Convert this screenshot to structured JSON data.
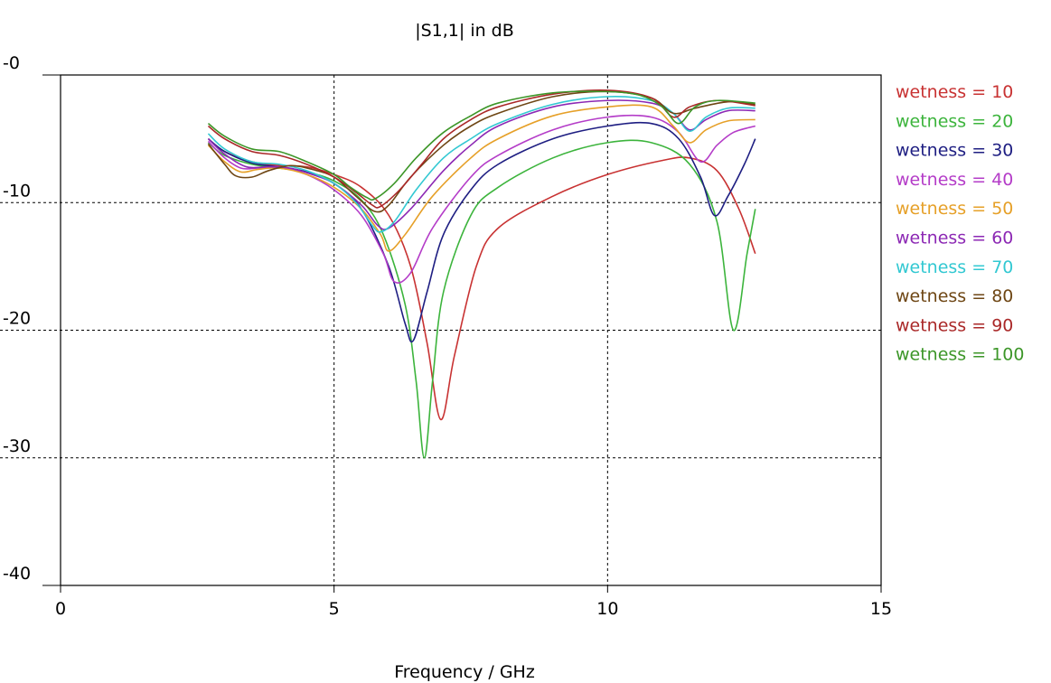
{
  "chart_data": {
    "type": "line",
    "title": "|S1,1| in dB",
    "xlabel": "Frequency / GHz",
    "ylabel": "",
    "xlim": [
      0,
      15
    ],
    "ylim": [
      -40,
      0
    ],
    "x_ticks": [
      "0",
      "5",
      "10",
      "15"
    ],
    "y_ticks": [
      "-0",
      "-10",
      "-20",
      "-30",
      "-40"
    ],
    "grid": "dashed at major ticks",
    "legend_position": "right",
    "series": [
      {
        "name": "wetness = 10",
        "color": "#c83232",
        "points": [
          [
            2.7,
            -5.0
          ],
          [
            3.0,
            -6.0
          ],
          [
            3.5,
            -6.8
          ],
          [
            4.0,
            -7.1
          ],
          [
            4.5,
            -7.2
          ],
          [
            5.0,
            -7.8
          ],
          [
            5.5,
            -8.8
          ],
          [
            6.0,
            -11.0
          ],
          [
            6.4,
            -15.0
          ],
          [
            6.7,
            -21.0
          ],
          [
            6.95,
            -27.0
          ],
          [
            7.2,
            -22.0
          ],
          [
            7.6,
            -15.0
          ],
          [
            8.0,
            -12.0
          ],
          [
            9.0,
            -9.5
          ],
          [
            10.0,
            -7.8
          ],
          [
            11.0,
            -6.7
          ],
          [
            11.5,
            -6.5
          ],
          [
            12.0,
            -7.5
          ],
          [
            12.4,
            -10.5
          ],
          [
            12.7,
            -14.0
          ]
        ]
      },
      {
        "name": "wetness = 20",
        "color": "#3cb43c",
        "points": [
          [
            2.7,
            -5.3
          ],
          [
            3.0,
            -6.3
          ],
          [
            3.5,
            -7.0
          ],
          [
            4.0,
            -7.3
          ],
          [
            4.5,
            -7.6
          ],
          [
            5.0,
            -8.3
          ],
          [
            5.5,
            -9.8
          ],
          [
            5.9,
            -12.5
          ],
          [
            6.3,
            -18.0
          ],
          [
            6.5,
            -24.0
          ],
          [
            6.65,
            -30.0
          ],
          [
            6.8,
            -24.0
          ],
          [
            7.0,
            -17.0
          ],
          [
            7.5,
            -11.0
          ],
          [
            8.0,
            -8.8
          ],
          [
            9.0,
            -6.5
          ],
          [
            10.0,
            -5.3
          ],
          [
            10.8,
            -5.3
          ],
          [
            11.5,
            -7.0
          ],
          [
            12.0,
            -11.5
          ],
          [
            12.3,
            -20.0
          ],
          [
            12.55,
            -14.0
          ],
          [
            12.7,
            -10.5
          ]
        ]
      },
      {
        "name": "wetness = 30",
        "color": "#1e1e82",
        "points": [
          [
            2.7,
            -5.0
          ],
          [
            3.0,
            -6.0
          ],
          [
            3.5,
            -6.9
          ],
          [
            4.0,
            -7.2
          ],
          [
            4.5,
            -7.6
          ],
          [
            5.0,
            -8.5
          ],
          [
            5.5,
            -10.5
          ],
          [
            6.0,
            -15.0
          ],
          [
            6.3,
            -19.5
          ],
          [
            6.45,
            -20.8
          ],
          [
            6.7,
            -17.0
          ],
          [
            7.0,
            -12.5
          ],
          [
            7.5,
            -9.0
          ],
          [
            8.0,
            -7.0
          ],
          [
            9.0,
            -5.0
          ],
          [
            10.0,
            -4.0
          ],
          [
            10.8,
            -3.8
          ],
          [
            11.3,
            -5.0
          ],
          [
            11.7,
            -8.0
          ],
          [
            11.95,
            -11.0
          ],
          [
            12.2,
            -9.5
          ],
          [
            12.5,
            -7.0
          ],
          [
            12.7,
            -5.0
          ]
        ]
      },
      {
        "name": "wetness = 40",
        "color": "#b43cc8",
        "points": [
          [
            2.7,
            -5.2
          ],
          [
            3.0,
            -6.5
          ],
          [
            3.3,
            -7.3
          ],
          [
            3.6,
            -7.3
          ],
          [
            4.0,
            -7.2
          ],
          [
            4.5,
            -7.8
          ],
          [
            5.0,
            -9.0
          ],
          [
            5.5,
            -11.0
          ],
          [
            5.9,
            -14.0
          ],
          [
            6.1,
            -16.2
          ],
          [
            6.4,
            -15.5
          ],
          [
            6.8,
            -12.0
          ],
          [
            7.5,
            -8.0
          ],
          [
            8.0,
            -6.3
          ],
          [
            9.0,
            -4.3
          ],
          [
            10.0,
            -3.3
          ],
          [
            10.8,
            -3.3
          ],
          [
            11.3,
            -4.5
          ],
          [
            11.7,
            -6.8
          ],
          [
            12.0,
            -5.5
          ],
          [
            12.3,
            -4.5
          ],
          [
            12.7,
            -4.0
          ]
        ]
      },
      {
        "name": "wetness = 50",
        "color": "#e6a028",
        "points": [
          [
            2.7,
            -5.5
          ],
          [
            3.0,
            -6.8
          ],
          [
            3.3,
            -7.6
          ],
          [
            3.6,
            -7.4
          ],
          [
            4.0,
            -7.3
          ],
          [
            4.5,
            -7.8
          ],
          [
            5.0,
            -8.8
          ],
          [
            5.5,
            -10.5
          ],
          [
            5.85,
            -12.5
          ],
          [
            6.0,
            -13.8
          ],
          [
            6.3,
            -12.5
          ],
          [
            6.8,
            -9.5
          ],
          [
            7.5,
            -6.5
          ],
          [
            8.0,
            -5.0
          ],
          [
            9.0,
            -3.2
          ],
          [
            10.0,
            -2.5
          ],
          [
            10.8,
            -2.5
          ],
          [
            11.2,
            -4.0
          ],
          [
            11.5,
            -5.3
          ],
          [
            11.8,
            -4.3
          ],
          [
            12.2,
            -3.6
          ],
          [
            12.7,
            -3.5
          ]
        ]
      },
      {
        "name": "wetness = 60",
        "color": "#8c28b4",
        "points": [
          [
            2.7,
            -5.0
          ],
          [
            3.0,
            -6.2
          ],
          [
            3.4,
            -7.2
          ],
          [
            3.8,
            -7.2
          ],
          [
            4.2,
            -7.3
          ],
          [
            4.6,
            -7.8
          ],
          [
            5.0,
            -8.5
          ],
          [
            5.5,
            -10.2
          ],
          [
            5.8,
            -11.8
          ],
          [
            6.0,
            -12.0
          ],
          [
            6.4,
            -10.5
          ],
          [
            7.0,
            -7.5
          ],
          [
            7.5,
            -5.5
          ],
          [
            8.0,
            -4.0
          ],
          [
            9.0,
            -2.5
          ],
          [
            10.0,
            -2.0
          ],
          [
            10.8,
            -2.2
          ],
          [
            11.2,
            -3.0
          ],
          [
            11.5,
            -4.3
          ],
          [
            11.8,
            -3.5
          ],
          [
            12.2,
            -2.8
          ],
          [
            12.7,
            -2.8
          ]
        ]
      },
      {
        "name": "wetness = 70",
        "color": "#32c8d2",
        "points": [
          [
            2.7,
            -4.6
          ],
          [
            3.0,
            -5.8
          ],
          [
            3.5,
            -6.8
          ],
          [
            4.0,
            -7.0
          ],
          [
            4.5,
            -7.5
          ],
          [
            5.0,
            -8.5
          ],
          [
            5.4,
            -10.0
          ],
          [
            5.7,
            -11.8
          ],
          [
            5.85,
            -12.3
          ],
          [
            6.1,
            -11.5
          ],
          [
            6.5,
            -9.0
          ],
          [
            7.0,
            -6.5
          ],
          [
            7.5,
            -5.0
          ],
          [
            8.0,
            -3.8
          ],
          [
            9.0,
            -2.3
          ],
          [
            10.0,
            -1.7
          ],
          [
            10.8,
            -2.0
          ],
          [
            11.2,
            -3.0
          ],
          [
            11.5,
            -4.4
          ],
          [
            11.8,
            -3.3
          ],
          [
            12.2,
            -2.6
          ],
          [
            12.7,
            -2.6
          ]
        ]
      },
      {
        "name": "wetness = 80",
        "color": "#6e4614",
        "points": [
          [
            2.7,
            -5.4
          ],
          [
            3.0,
            -7.0
          ],
          [
            3.2,
            -7.9
          ],
          [
            3.5,
            -8.0
          ],
          [
            3.8,
            -7.5
          ],
          [
            4.2,
            -7.1
          ],
          [
            4.6,
            -7.4
          ],
          [
            5.0,
            -8.0
          ],
          [
            5.4,
            -9.5
          ],
          [
            5.75,
            -10.7
          ],
          [
            6.0,
            -10.2
          ],
          [
            6.4,
            -8.0
          ],
          [
            7.0,
            -5.5
          ],
          [
            7.5,
            -4.0
          ],
          [
            8.0,
            -3.0
          ],
          [
            9.0,
            -1.7
          ],
          [
            10.0,
            -1.3
          ],
          [
            10.8,
            -1.8
          ],
          [
            11.2,
            -3.0
          ],
          [
            11.6,
            -2.6
          ],
          [
            12.2,
            -2.1
          ],
          [
            12.7,
            -2.3
          ]
        ]
      },
      {
        "name": "wetness = 90",
        "color": "#aa2828",
        "points": [
          [
            2.7,
            -4.0
          ],
          [
            3.0,
            -5.0
          ],
          [
            3.5,
            -6.0
          ],
          [
            4.0,
            -6.3
          ],
          [
            4.5,
            -7.0
          ],
          [
            5.0,
            -8.0
          ],
          [
            5.4,
            -9.2
          ],
          [
            5.7,
            -10.2
          ],
          [
            5.85,
            -10.3
          ],
          [
            6.2,
            -9.0
          ],
          [
            6.6,
            -7.0
          ],
          [
            7.0,
            -5.0
          ],
          [
            7.5,
            -3.5
          ],
          [
            8.0,
            -2.5
          ],
          [
            9.0,
            -1.5
          ],
          [
            10.0,
            -1.2
          ],
          [
            10.8,
            -1.8
          ],
          [
            11.2,
            -3.3
          ],
          [
            11.5,
            -2.5
          ],
          [
            12.0,
            -2.0
          ],
          [
            12.7,
            -2.4
          ]
        ]
      },
      {
        "name": "wetness = 100",
        "color": "#3c9628",
        "points": [
          [
            2.7,
            -3.8
          ],
          [
            3.0,
            -4.8
          ],
          [
            3.5,
            -5.8
          ],
          [
            4.0,
            -6.0
          ],
          [
            4.5,
            -6.8
          ],
          [
            5.0,
            -7.8
          ],
          [
            5.3,
            -8.8
          ],
          [
            5.6,
            -9.6
          ],
          [
            5.75,
            -9.7
          ],
          [
            6.1,
            -8.5
          ],
          [
            6.5,
            -6.5
          ],
          [
            7.0,
            -4.5
          ],
          [
            7.5,
            -3.2
          ],
          [
            8.0,
            -2.2
          ],
          [
            9.0,
            -1.4
          ],
          [
            10.0,
            -1.3
          ],
          [
            10.6,
            -1.6
          ],
          [
            11.0,
            -2.5
          ],
          [
            11.3,
            -3.8
          ],
          [
            11.6,
            -2.5
          ],
          [
            12.0,
            -2.0
          ],
          [
            12.7,
            -2.2
          ]
        ]
      }
    ]
  }
}
